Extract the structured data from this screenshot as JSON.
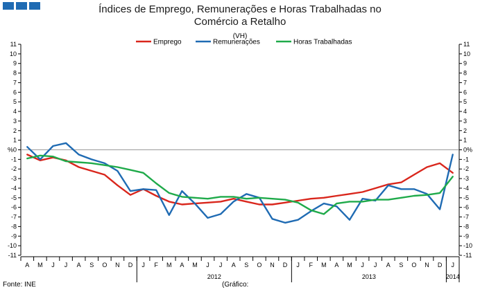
{
  "header": {
    "title_line1": "Índices de Emprego, Remunerações e Horas Trabalhadas no",
    "title_line2": "Comércio a Retalho",
    "unit": "(VH)",
    "brand_color": "#1f6bb3"
  },
  "footer": {
    "source": "Fonte: INE",
    "chart_label": "(Gráfico:"
  },
  "chart_data": {
    "type": "line",
    "title": "Índices de Emprego, Remunerações e Horas Trabalhadas no Comércio a Retalho",
    "unit": "(VH)",
    "ylim": [
      -11,
      11
    ],
    "yticks": [
      11,
      10,
      9,
      8,
      7,
      6,
      5,
      4,
      3,
      2,
      1,
      0,
      -1,
      -2,
      -3,
      -4,
      -5,
      -6,
      -7,
      -8,
      -9,
      -10,
      -11
    ],
    "y_unit_label": "%",
    "zero_label_left": "%0",
    "zero_label_right": "0%",
    "grid": false,
    "legend_position": "top-center",
    "categories": [
      "A",
      "M",
      "J",
      "J",
      "A",
      "S",
      "O",
      "N",
      "D",
      "J",
      "F",
      "M",
      "A",
      "M",
      "J",
      "J",
      "A",
      "S",
      "O",
      "N",
      "D",
      "J",
      "F",
      "M",
      "A",
      "M",
      "J",
      "J",
      "A",
      "S",
      "O",
      "N",
      "D",
      "J"
    ],
    "year_labels": [
      {
        "label": "2012",
        "start": 9,
        "end": 20
      },
      {
        "label": "2013",
        "start": 21,
        "end": 32
      },
      {
        "label": "2014",
        "start": 33,
        "end": 33
      }
    ],
    "series": [
      {
        "name": "Emprego",
        "color": "#d9261c",
        "values": [
          -0.5,
          -1.1,
          -0.8,
          -1.1,
          -1.8,
          -2.2,
          -2.6,
          -3.7,
          -4.7,
          -4.1,
          -4.8,
          -5.4,
          -5.7,
          -5.6,
          -5.5,
          -5.4,
          -5.1,
          -5.4,
          -5.7,
          -5.7,
          -5.5,
          -5.3,
          -5.1,
          -5.0,
          -4.8,
          -4.6,
          -4.4,
          -4.0,
          -3.6,
          -3.4,
          -2.6,
          -1.8,
          -1.4,
          -2.4
        ]
      },
      {
        "name": "Remunerações",
        "color": "#1f6bb3",
        "values": [
          0.3,
          -1.0,
          0.4,
          0.7,
          -0.5,
          -1.0,
          -1.4,
          -2.2,
          -4.3,
          -4.1,
          -4.2,
          -6.8,
          -4.3,
          -5.6,
          -7.1,
          -6.7,
          -5.4,
          -4.6,
          -5.0,
          -7.2,
          -7.6,
          -7.3,
          -6.4,
          -5.6,
          -5.9,
          -7.3,
          -5.1,
          -5.3,
          -3.7,
          -4.1,
          -4.1,
          -4.6,
          -6.2,
          -0.5
        ]
      },
      {
        "name": "Horas Trabalhadas",
        "color": "#1faa4a",
        "values": [
          -0.9,
          -0.6,
          -0.7,
          -1.2,
          -1.3,
          -1.4,
          -1.6,
          -1.8,
          -2.1,
          -2.4,
          -3.5,
          -4.5,
          -4.9,
          -5.0,
          -5.1,
          -4.9,
          -4.9,
          -5.1,
          -5.0,
          -5.1,
          -5.2,
          -5.5,
          -6.3,
          -6.7,
          -5.6,
          -5.4,
          -5.4,
          -5.2,
          -5.2,
          -5.0,
          -4.8,
          -4.7,
          -4.5,
          -2.8
        ]
      }
    ]
  }
}
